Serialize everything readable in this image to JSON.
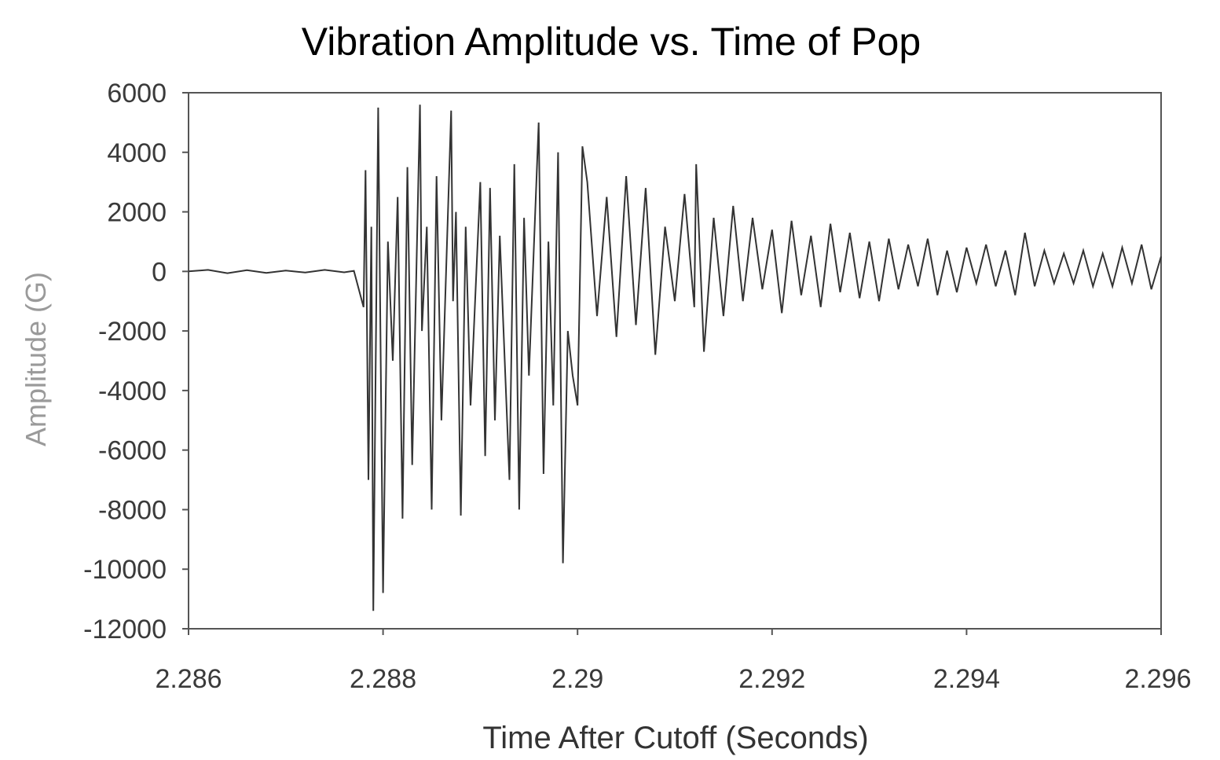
{
  "chart_data": {
    "type": "line",
    "title": "Vibration Amplitude vs. Time of Pop",
    "xlabel": "Time After Cutoff (Seconds)",
    "ylabel": "Amplitude (G)",
    "xlim": [
      2.286,
      2.296
    ],
    "ylim": [
      -12000,
      6000
    ],
    "x_ticks": [
      2.286,
      2.288,
      2.29,
      2.292,
      2.294,
      2.296
    ],
    "x_tick_labels": [
      "2.286",
      "2.288",
      "2.29",
      "2.292",
      "2.294",
      "2.296"
    ],
    "y_ticks": [
      6000,
      4000,
      2000,
      0,
      -2000,
      -4000,
      -6000,
      -8000,
      -10000,
      -12000
    ],
    "y_tick_labels": [
      "6000",
      "4000",
      "2000",
      "0",
      "-2000",
      "-4000",
      "-6000",
      "-8000",
      "-10000",
      "-12000"
    ],
    "grid": false,
    "legend": "none",
    "line_color": "#333333",
    "series": [
      {
        "x": [
          2.286,
          2.2862,
          2.2864,
          2.2866,
          2.2868,
          2.287,
          2.2872,
          2.2874,
          2.2876,
          2.2877,
          2.2878,
          2.28782,
          2.28785,
          2.28788,
          2.2879,
          2.28795,
          2.288,
          2.28805,
          2.2881,
          2.28815,
          2.2882,
          2.28825,
          2.2883,
          2.28838,
          2.2884,
          2.28845,
          2.2885,
          2.28855,
          2.2886,
          2.2887,
          2.28872,
          2.28875,
          2.2888,
          2.28885,
          2.2889,
          2.289,
          2.28905,
          2.2891,
          2.28915,
          2.2892,
          2.2893,
          2.28935,
          2.2894,
          2.28945,
          2.2895,
          2.2896,
          2.28965,
          2.2897,
          2.28975,
          2.2898,
          2.28985,
          2.2899,
          2.28995,
          2.29,
          2.29005,
          2.2901,
          2.2902,
          2.2903,
          2.2904,
          2.2905,
          2.2906,
          2.2907,
          2.2908,
          2.2909,
          2.291,
          2.2911,
          2.2912,
          2.29122,
          2.2913,
          2.2914,
          2.2915,
          2.2916,
          2.2917,
          2.2918,
          2.2919,
          2.292,
          2.2921,
          2.2922,
          2.2923,
          2.2924,
          2.2925,
          2.2926,
          2.2927,
          2.2928,
          2.2929,
          2.293,
          2.2931,
          2.2932,
          2.2933,
          2.2934,
          2.2935,
          2.2936,
          2.2937,
          2.2938,
          2.2939,
          2.294,
          2.2941,
          2.2942,
          2.2943,
          2.2944,
          2.2945,
          2.2946,
          2.2947,
          2.2948,
          2.2949,
          2.295,
          2.2951,
          2.2952,
          2.2953,
          2.2954,
          2.2955,
          2.2956,
          2.2957,
          2.2958,
          2.2959,
          2.296
        ],
        "y": [
          0,
          50,
          -60,
          40,
          -50,
          30,
          -40,
          50,
          -30,
          20,
          -1200,
          3400,
          -7000,
          1500,
          -11400,
          5500,
          -10800,
          1000,
          -3000,
          2500,
          -8300,
          3500,
          -6500,
          5600,
          -2000,
          1500,
          -8000,
          3200,
          -5000,
          5400,
          -1000,
          2000,
          -8200,
          1500,
          -4500,
          3000,
          -6200,
          2800,
          -5000,
          1200,
          -7000,
          3600,
          -8000,
          1800,
          -3500,
          5000,
          -6800,
          1000,
          -4500,
          4000,
          -9800,
          -2000,
          -3500,
          -4500,
          4200,
          3000,
          -1500,
          2500,
          -2200,
          3200,
          -1800,
          2800,
          -2800,
          1500,
          -1000,
          2600,
          -1200,
          3600,
          -2700,
          1800,
          -1500,
          2200,
          -1000,
          1800,
          -600,
          1400,
          -1400,
          1700,
          -800,
          1200,
          -1200,
          1600,
          -700,
          1300,
          -900,
          1000,
          -1000,
          1100,
          -600,
          900,
          -500,
          1100,
          -800,
          700,
          -700,
          800,
          -400,
          900,
          -500,
          700,
          -800,
          1300,
          -500,
          700,
          -400,
          600,
          -400,
          700,
          -500,
          600,
          -500,
          800,
          -400,
          900,
          -600,
          500
        ]
      }
    ]
  }
}
